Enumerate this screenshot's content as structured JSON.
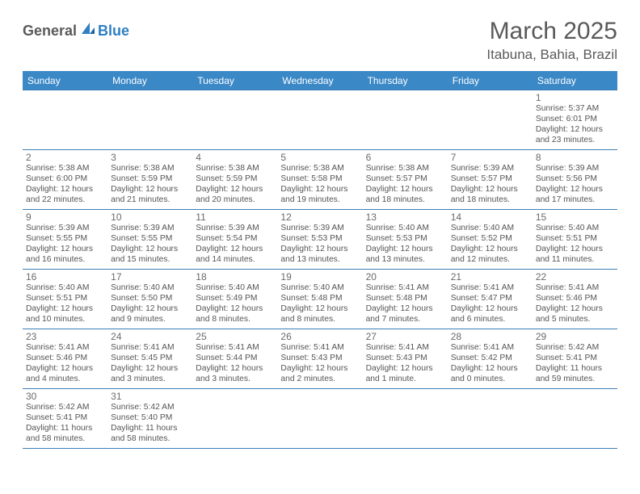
{
  "logo": {
    "text1": "General",
    "text2": "Blue"
  },
  "title": "March 2025",
  "location": "Itabuna, Bahia, Brazil",
  "weekdays": [
    "Sunday",
    "Monday",
    "Tuesday",
    "Wednesday",
    "Thursday",
    "Friday",
    "Saturday"
  ],
  "colors": {
    "header_bg": "#3b88c6",
    "header_text": "#ffffff",
    "title_text": "#5a5a5a",
    "logo_gray": "#5a5a5a",
    "logo_blue": "#2f7fc2",
    "cell_border": "#3b7fb8",
    "body_text": "#555555",
    "daynum_text": "#6a6a6a"
  },
  "grid": [
    [
      null,
      null,
      null,
      null,
      null,
      null,
      {
        "day": 1,
        "sunrise": "5:37 AM",
        "sunset": "6:01 PM",
        "daylight": "12 hours and 23 minutes."
      }
    ],
    [
      {
        "day": 2,
        "sunrise": "5:38 AM",
        "sunset": "6:00 PM",
        "daylight": "12 hours and 22 minutes."
      },
      {
        "day": 3,
        "sunrise": "5:38 AM",
        "sunset": "5:59 PM",
        "daylight": "12 hours and 21 minutes."
      },
      {
        "day": 4,
        "sunrise": "5:38 AM",
        "sunset": "5:59 PM",
        "daylight": "12 hours and 20 minutes."
      },
      {
        "day": 5,
        "sunrise": "5:38 AM",
        "sunset": "5:58 PM",
        "daylight": "12 hours and 19 minutes."
      },
      {
        "day": 6,
        "sunrise": "5:38 AM",
        "sunset": "5:57 PM",
        "daylight": "12 hours and 18 minutes."
      },
      {
        "day": 7,
        "sunrise": "5:39 AM",
        "sunset": "5:57 PM",
        "daylight": "12 hours and 18 minutes."
      },
      {
        "day": 8,
        "sunrise": "5:39 AM",
        "sunset": "5:56 PM",
        "daylight": "12 hours and 17 minutes."
      }
    ],
    [
      {
        "day": 9,
        "sunrise": "5:39 AM",
        "sunset": "5:55 PM",
        "daylight": "12 hours and 16 minutes."
      },
      {
        "day": 10,
        "sunrise": "5:39 AM",
        "sunset": "5:55 PM",
        "daylight": "12 hours and 15 minutes."
      },
      {
        "day": 11,
        "sunrise": "5:39 AM",
        "sunset": "5:54 PM",
        "daylight": "12 hours and 14 minutes."
      },
      {
        "day": 12,
        "sunrise": "5:39 AM",
        "sunset": "5:53 PM",
        "daylight": "12 hours and 13 minutes."
      },
      {
        "day": 13,
        "sunrise": "5:40 AM",
        "sunset": "5:53 PM",
        "daylight": "12 hours and 13 minutes."
      },
      {
        "day": 14,
        "sunrise": "5:40 AM",
        "sunset": "5:52 PM",
        "daylight": "12 hours and 12 minutes."
      },
      {
        "day": 15,
        "sunrise": "5:40 AM",
        "sunset": "5:51 PM",
        "daylight": "12 hours and 11 minutes."
      }
    ],
    [
      {
        "day": 16,
        "sunrise": "5:40 AM",
        "sunset": "5:51 PM",
        "daylight": "12 hours and 10 minutes."
      },
      {
        "day": 17,
        "sunrise": "5:40 AM",
        "sunset": "5:50 PM",
        "daylight": "12 hours and 9 minutes."
      },
      {
        "day": 18,
        "sunrise": "5:40 AM",
        "sunset": "5:49 PM",
        "daylight": "12 hours and 8 minutes."
      },
      {
        "day": 19,
        "sunrise": "5:40 AM",
        "sunset": "5:48 PM",
        "daylight": "12 hours and 8 minutes."
      },
      {
        "day": 20,
        "sunrise": "5:41 AM",
        "sunset": "5:48 PM",
        "daylight": "12 hours and 7 minutes."
      },
      {
        "day": 21,
        "sunrise": "5:41 AM",
        "sunset": "5:47 PM",
        "daylight": "12 hours and 6 minutes."
      },
      {
        "day": 22,
        "sunrise": "5:41 AM",
        "sunset": "5:46 PM",
        "daylight": "12 hours and 5 minutes."
      }
    ],
    [
      {
        "day": 23,
        "sunrise": "5:41 AM",
        "sunset": "5:46 PM",
        "daylight": "12 hours and 4 minutes."
      },
      {
        "day": 24,
        "sunrise": "5:41 AM",
        "sunset": "5:45 PM",
        "daylight": "12 hours and 3 minutes."
      },
      {
        "day": 25,
        "sunrise": "5:41 AM",
        "sunset": "5:44 PM",
        "daylight": "12 hours and 3 minutes."
      },
      {
        "day": 26,
        "sunrise": "5:41 AM",
        "sunset": "5:43 PM",
        "daylight": "12 hours and 2 minutes."
      },
      {
        "day": 27,
        "sunrise": "5:41 AM",
        "sunset": "5:43 PM",
        "daylight": "12 hours and 1 minute."
      },
      {
        "day": 28,
        "sunrise": "5:41 AM",
        "sunset": "5:42 PM",
        "daylight": "12 hours and 0 minutes."
      },
      {
        "day": 29,
        "sunrise": "5:42 AM",
        "sunset": "5:41 PM",
        "daylight": "11 hours and 59 minutes."
      }
    ],
    [
      {
        "day": 30,
        "sunrise": "5:42 AM",
        "sunset": "5:41 PM",
        "daylight": "11 hours and 58 minutes."
      },
      {
        "day": 31,
        "sunrise": "5:42 AM",
        "sunset": "5:40 PM",
        "daylight": "11 hours and 58 minutes."
      },
      null,
      null,
      null,
      null,
      null
    ]
  ]
}
